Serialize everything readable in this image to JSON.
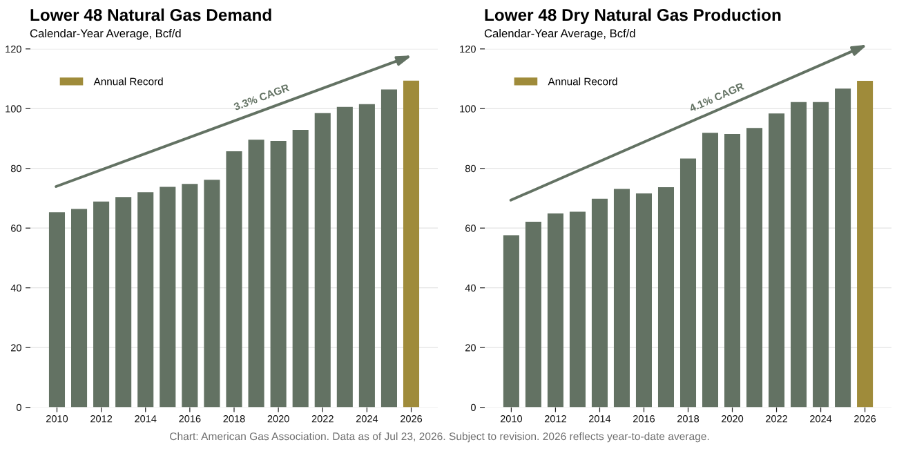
{
  "chart_data": [
    {
      "type": "bar",
      "title": "Lower 48 Natural Gas Demand",
      "subtitle": "Calendar-Year Average, Bcf/d",
      "x": [
        2010,
        2011,
        2012,
        2013,
        2014,
        2015,
        2016,
        2017,
        2018,
        2019,
        2020,
        2021,
        2022,
        2023,
        2024,
        2025,
        2026
      ],
      "stacked": true,
      "series": [
        {
          "color": "#637263",
          "values": [
            65.3,
            66.4,
            68.9,
            70.4,
            72.0,
            73.8,
            74.8,
            76.2,
            85.7,
            89.6,
            89.2,
            92.9,
            98.5,
            100.6,
            101.5,
            106.4,
            null
          ]
        },
        {
          "name": "Annual Record",
          "color": "#9f8b3a",
          "values": [
            null,
            null,
            null,
            null,
            null,
            null,
            null,
            null,
            null,
            null,
            null,
            null,
            null,
            null,
            null,
            null,
            109.4
          ]
        }
      ],
      "annotations": [
        "3.3% CAGR",
        "Chart: American Gas Association. Data as of Jul 23, 2026. Subject to revision. 2026 reflects year-to-date average."
      ],
      "xlim": [
        2008.8,
        2027.2
      ],
      "xticks": [
        2010,
        2012,
        2014,
        2016,
        2018,
        2020,
        2022,
        2024,
        2026
      ],
      "ylim": [
        0,
        120
      ],
      "yticks": [
        0,
        20,
        40,
        60,
        80,
        100,
        120
      ],
      "grid": "y",
      "legend": "top left"
    },
    {
      "type": "bar",
      "title": "Lower 48 Dry Natural Gas Production",
      "subtitle": "Calendar-Year Average, Bcf/d",
      "x": [
        2010,
        2011,
        2012,
        2013,
        2014,
        2015,
        2016,
        2017,
        2018,
        2019,
        2020,
        2021,
        2022,
        2023,
        2024,
        2025,
        2026
      ],
      "stacked": true,
      "series": [
        {
          "color": "#637263",
          "values": [
            57.6,
            62.1,
            64.9,
            65.5,
            69.8,
            73.1,
            71.6,
            73.7,
            83.3,
            91.9,
            91.5,
            93.5,
            98.4,
            102.2,
            102.2,
            106.7,
            null
          ]
        },
        {
          "name": "Annual Record",
          "color": "#9f8b3a",
          "values": [
            null,
            null,
            null,
            null,
            null,
            null,
            null,
            null,
            null,
            null,
            null,
            null,
            null,
            null,
            null,
            null,
            109.3
          ]
        }
      ],
      "annotations": [
        "4.1% CAGR"
      ],
      "xlim": [
        2008.8,
        2027.2
      ],
      "xticks": [
        2010,
        2012,
        2014,
        2016,
        2018,
        2020,
        2022,
        2024,
        2026
      ],
      "ylim": [
        0,
        120
      ],
      "yticks": [
        0,
        20,
        40,
        60,
        80,
        100,
        120
      ],
      "grid": "y",
      "legend": "top left"
    }
  ]
}
